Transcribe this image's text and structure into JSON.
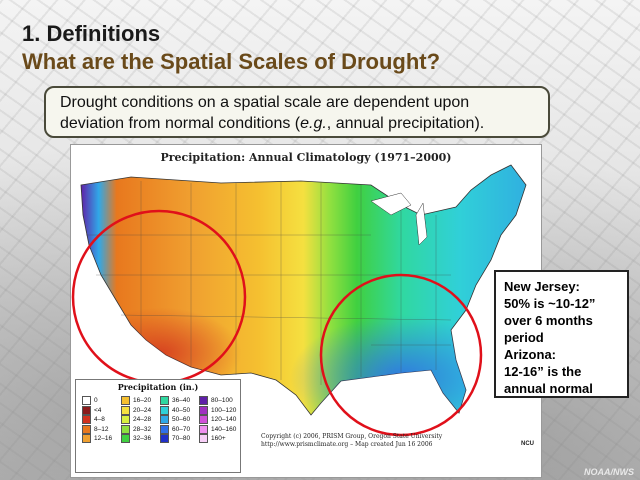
{
  "slide": {
    "title_line1": "1. Definitions",
    "title_line2": "What are the Spatial Scales of Drought?",
    "callout_line1": "Drought conditions on a spatial scale are dependent upon",
    "callout_line2_pre": "deviation from normal conditions (",
    "callout_line2_em": "e.g.",
    "callout_line2_post": ", annual precipitation).",
    "watermark": "NOAA/NWS"
  },
  "map": {
    "title": "Precipitation:  Annual Climatology (1971–2000)",
    "legend_title": "Precipitation (in.)",
    "legend_items": [
      {
        "label": "0",
        "color": "#ffffff"
      },
      {
        "label": "<4",
        "color": "#8b1a1a"
      },
      {
        "label": "4–8",
        "color": "#d2321e"
      },
      {
        "label": "8–12",
        "color": "#e8781e"
      },
      {
        "label": "12–16",
        "color": "#f0a030"
      },
      {
        "label": "16–20",
        "color": "#f5c030"
      },
      {
        "label": "20–24",
        "color": "#f5e040"
      },
      {
        "label": "24–28",
        "color": "#d8f040"
      },
      {
        "label": "28–32",
        "color": "#90e040"
      },
      {
        "label": "32–36",
        "color": "#40d040"
      },
      {
        "label": "36–40",
        "color": "#30d8a0"
      },
      {
        "label": "40–50",
        "color": "#30d0d8"
      },
      {
        "label": "50–60",
        "color": "#30a8e8"
      },
      {
        "label": "60–70",
        "color": "#3070e8"
      },
      {
        "label": "70–80",
        "color": "#2030c8"
      },
      {
        "label": "80–100",
        "color": "#6020a8"
      },
      {
        "label": "100–120",
        "color": "#a030c0"
      },
      {
        "label": "120–140",
        "color": "#d050d8"
      },
      {
        "label": "140–160",
        "color": "#f090f0"
      },
      {
        "label": "160+",
        "color": "#f8d0f8"
      }
    ],
    "copyright_line1": "Copyright (c) 2006, PRISM Group, Oregon State University",
    "copyright_line2": "http://www.prismclimate.org  –  Map created Jun 16 2006",
    "ncu_label": "NCU"
  },
  "annotation": {
    "line1": "New Jersey:",
    "line2": "50% is ~10-12”",
    "line3": "over 6 months",
    "line4": "period",
    "line5": "Arizona:",
    "line6": "12-16” is the",
    "line7": "annual normal"
  },
  "colors": {
    "title_primary": "#1a1a1a",
    "title_secondary": "#6a4a1a",
    "circle": "#e0101a"
  }
}
